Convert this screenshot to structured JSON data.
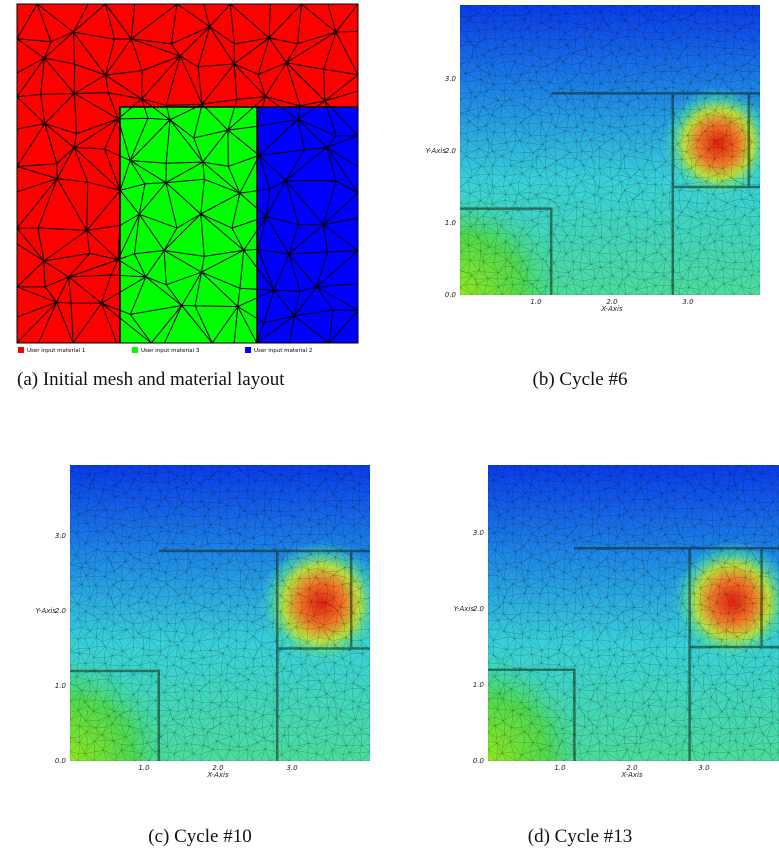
{
  "panels": [
    {
      "caption": "(a) Initial mesh and material layout",
      "legend": [
        "User input material 1",
        "User input material 3",
        "User input material 2"
      ]
    },
    {
      "caption": "(b) Cycle #6",
      "y_axis_label": "Y-Axis",
      "x_axis_label": "X-Axis",
      "yticks": [
        "3.0",
        "2.0",
        "1.0",
        "0.0"
      ],
      "xticks": [
        "1.0",
        "2.0",
        "3.0"
      ]
    },
    {
      "caption": "(c) Cycle #10",
      "y_axis_label": "Y-Axis",
      "x_axis_label": "X-Axis",
      "yticks": [
        "3.0",
        "2.0",
        "1.0",
        "0.0"
      ],
      "xticks": [
        "1.0",
        "2.0",
        "3.0"
      ]
    },
    {
      "caption": "(d) Cycle #13",
      "y_axis_label": "Y-Axis",
      "x_axis_label": "X-Axis",
      "yticks": [
        "3.0",
        "2.0",
        "1.0",
        "0.0"
      ],
      "xticks": [
        "1.0",
        "2.0",
        "3.0"
      ]
    }
  ]
}
